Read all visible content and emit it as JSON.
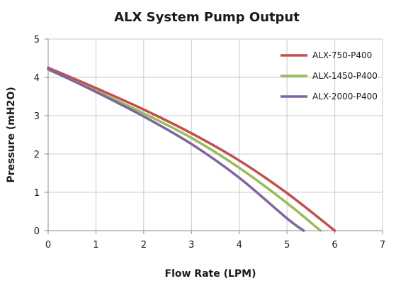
{
  "chart_data": {
    "type": "line",
    "title": "ALX System Pump Output",
    "xlabel": "Flow Rate (LPM)",
    "ylabel": "Pressure (mH2O)",
    "xlim": [
      0,
      7
    ],
    "ylim": [
      0,
      5
    ],
    "xticks": [
      "0",
      "1",
      "2",
      "3",
      "4",
      "5",
      "6",
      "7"
    ],
    "yticks": [
      "0",
      "1",
      "2",
      "3",
      "4",
      "5"
    ],
    "grid": true,
    "legend_position": "top-right",
    "series": [
      {
        "name": "ALX-750-P400",
        "color": "#c0504d",
        "x": [
          0,
          1,
          2,
          3,
          4,
          5,
          6
        ],
        "y": [
          4.25,
          3.72,
          3.16,
          2.54,
          1.83,
          0.98,
          0.0
        ]
      },
      {
        "name": "ALX-1450-P400",
        "color": "#9bbb59",
        "x": [
          0,
          1,
          2,
          3,
          4,
          5,
          5.7
        ],
        "y": [
          4.2,
          3.65,
          3.06,
          2.42,
          1.64,
          0.72,
          0.0
        ]
      },
      {
        "name": "ALX-2000-P400",
        "color": "#8064a2",
        "x": [
          0,
          1,
          2,
          3,
          4,
          5,
          5.35
        ],
        "y": [
          4.22,
          3.62,
          2.98,
          2.26,
          1.38,
          0.32,
          0.0
        ]
      }
    ]
  }
}
